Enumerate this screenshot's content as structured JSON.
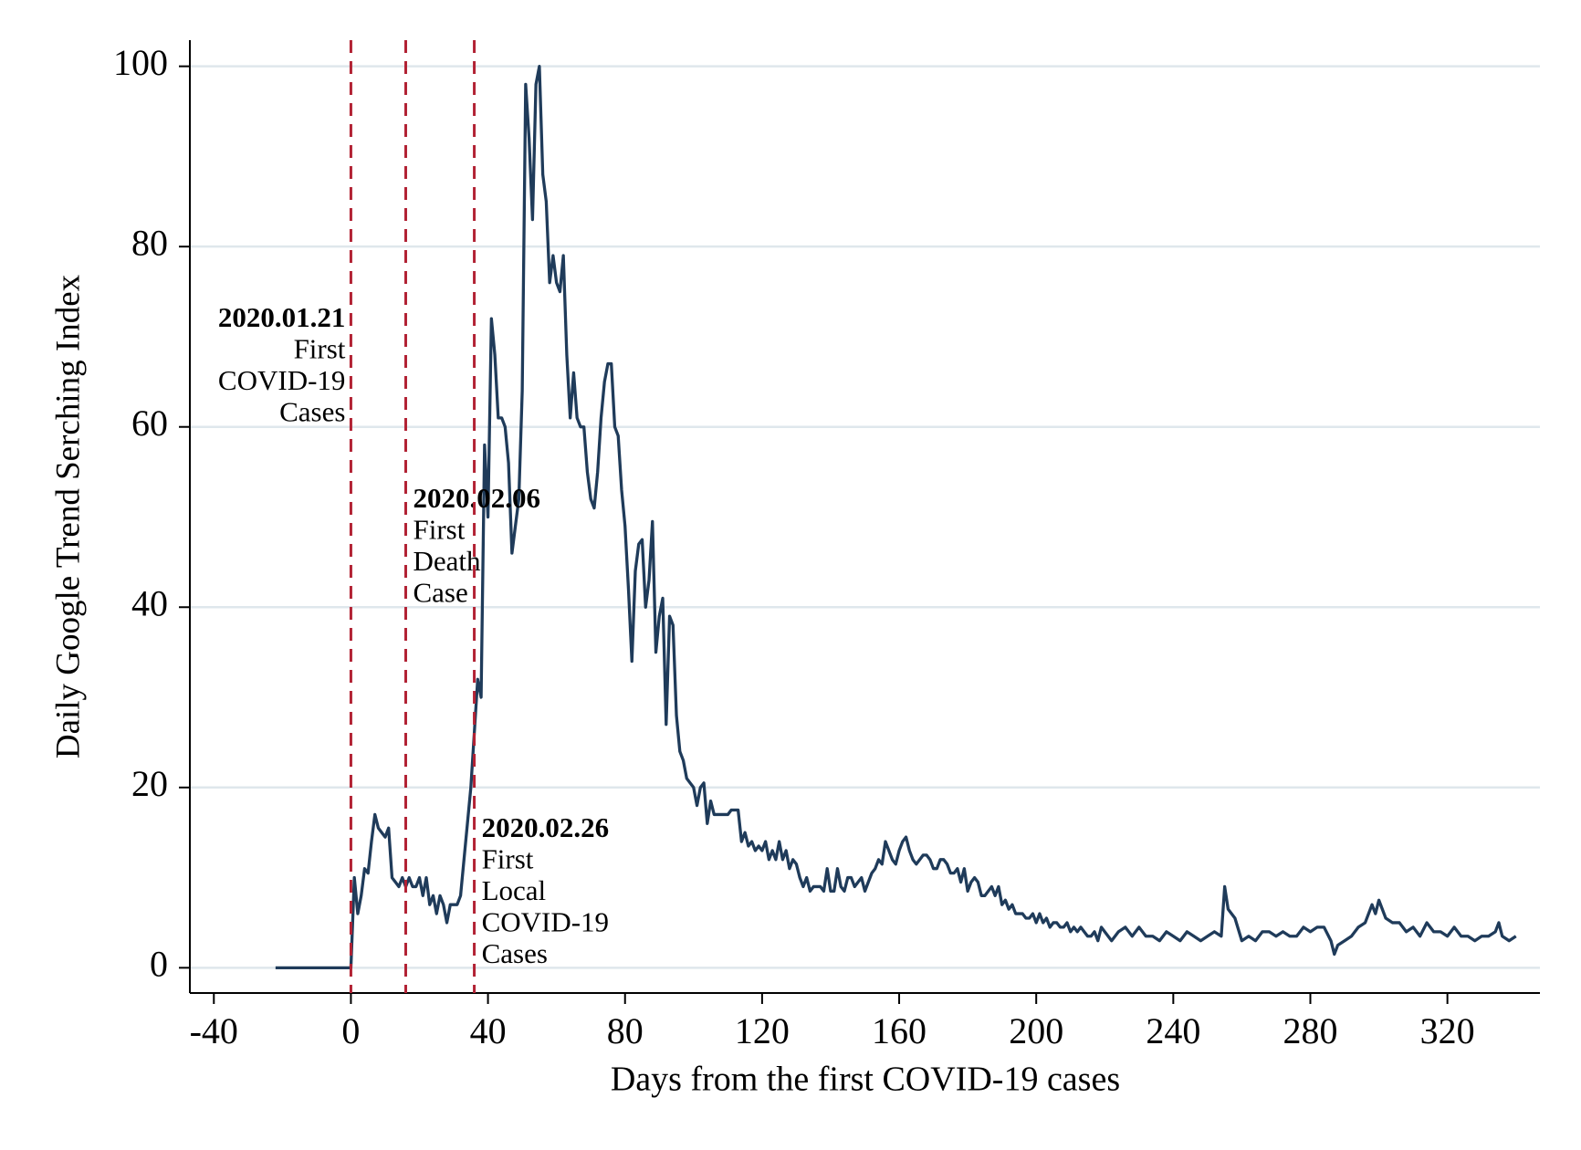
{
  "chart_data": {
    "type": "line",
    "xlabel": "Days from the first COVID-19 cases",
    "ylabel": "Daily Google Trend Serching Index",
    "color": "#1f3b5a",
    "xlim": [
      -47,
      347
    ],
    "ylim": [
      -2.8,
      102.9
    ],
    "xticks": [
      -40,
      0,
      40,
      80,
      120,
      160,
      200,
      240,
      280,
      320
    ],
    "yticks": [
      0,
      20,
      40,
      60,
      80,
      100
    ],
    "grid": true,
    "annotation_color": "#b22234",
    "annotations": [
      {
        "x": 0,
        "date": "2020.01.21",
        "lines": [
          "First",
          "COVID-19",
          "Cases"
        ]
      },
      {
        "x": 16,
        "date": "2020.02.06",
        "lines": [
          "First",
          "Death",
          "Case"
        ]
      },
      {
        "x": 36,
        "date": "2020.02.26",
        "lines": [
          "First",
          "Local",
          "COVID-19",
          "Cases"
        ]
      }
    ],
    "x": [
      -22,
      0,
      1,
      2,
      3,
      4,
      5,
      6,
      7,
      8,
      9,
      10,
      11,
      12,
      13,
      14,
      15,
      16,
      17,
      18,
      19,
      20,
      21,
      22,
      23,
      24,
      25,
      26,
      27,
      28,
      29,
      30,
      31,
      32,
      33,
      34,
      35,
      36,
      37,
      38,
      39,
      40,
      41,
      42,
      43,
      44,
      45,
      46,
      47,
      48,
      49,
      50,
      51,
      52,
      53,
      54,
      55,
      56,
      57,
      58,
      59,
      60,
      61,
      62,
      63,
      64,
      65,
      66,
      67,
      68,
      69,
      70,
      71,
      72,
      73,
      74,
      75,
      76,
      77,
      78,
      79,
      80,
      81,
      82,
      83,
      84,
      85,
      86,
      87,
      88,
      89,
      90,
      91,
      92,
      93,
      94,
      95,
      96,
      97,
      98,
      99,
      100,
      101,
      102,
      103,
      104,
      105,
      106,
      107,
      108,
      109,
      110,
      111,
      112,
      113,
      114,
      115,
      116,
      117,
      118,
      119,
      120,
      121,
      122,
      123,
      124,
      125,
      126,
      127,
      128,
      129,
      130,
      131,
      132,
      133,
      134,
      135,
      136,
      137,
      138,
      139,
      140,
      141,
      142,
      143,
      144,
      145,
      146,
      147,
      148,
      149,
      150,
      151,
      152,
      153,
      154,
      155,
      156,
      157,
      158,
      159,
      160,
      161,
      162,
      163,
      164,
      165,
      166,
      167,
      168,
      169,
      170,
      171,
      172,
      173,
      174,
      175,
      176,
      177,
      178,
      179,
      180,
      181,
      182,
      183,
      184,
      185,
      186,
      187,
      188,
      189,
      190,
      191,
      192,
      193,
      194,
      195,
      196,
      197,
      198,
      199,
      200,
      201,
      202,
      203,
      204,
      205,
      206,
      207,
      208,
      209,
      210,
      211,
      212,
      213,
      214,
      215,
      216,
      217,
      218,
      219,
      220,
      222,
      224,
      226,
      228,
      230,
      232,
      234,
      236,
      238,
      240,
      242,
      244,
      246,
      248,
      250,
      252,
      254,
      255,
      256,
      258,
      260,
      262,
      264,
      266,
      268,
      270,
      272,
      274,
      276,
      278,
      280,
      282,
      284,
      286,
      287,
      288,
      290,
      292,
      294,
      296,
      298,
      299,
      300,
      302,
      304,
      306,
      308,
      310,
      312,
      314,
      316,
      318,
      320,
      322,
      324,
      326,
      328,
      330,
      332,
      334,
      335,
      336,
      338,
      340
    ],
    "values": [
      0,
      0,
      10,
      6,
      8,
      11,
      10.5,
      14,
      17,
      15.5,
      15,
      14.5,
      15.5,
      10,
      9.5,
      9,
      10,
      9,
      10,
      9,
      9,
      10,
      8,
      10,
      7,
      8,
      6,
      8,
      7,
      5,
      7,
      7,
      7,
      8,
      12,
      16,
      20,
      26,
      32,
      30,
      58,
      50,
      72,
      68,
      61,
      61,
      60,
      56,
      46,
      49,
      52,
      64,
      98,
      92,
      83,
      98,
      100,
      88,
      85,
      76,
      79,
      76,
      75,
      79,
      68,
      61,
      66,
      61,
      60,
      60,
      55,
      52,
      51,
      55,
      61,
      65,
      67,
      67,
      60,
      59,
      53,
      49,
      42,
      34,
      44,
      47,
      47.5,
      40,
      43,
      49.5,
      35,
      39,
      41,
      27,
      39,
      38,
      28,
      24,
      23,
      21,
      20.5,
      20,
      18,
      20,
      20.5,
      16,
      18.5,
      17,
      17,
      17,
      17,
      17,
      17.5,
      17.5,
      17.5,
      14,
      15,
      13.5,
      14,
      13,
      13.5,
      13,
      14,
      12,
      13,
      12,
      14,
      12,
      13,
      11,
      12,
      11.5,
      10,
      9,
      10,
      8.5,
      9,
      9,
      9,
      8.5,
      11,
      8.5,
      8.5,
      11,
      9,
      8.5,
      10,
      10,
      9,
      9.5,
      10,
      8.5,
      9.5,
      10.5,
      11,
      12,
      11.5,
      14,
      13,
      12,
      11.5,
      13,
      14,
      14.5,
      13,
      12,
      11.5,
      12,
      12.5,
      12.5,
      12,
      11,
      11,
      12,
      12,
      11.5,
      10.5,
      10.5,
      11,
      9.5,
      11,
      8.5,
      9.5,
      10,
      9.5,
      8,
      8,
      8.5,
      9,
      8,
      9,
      7,
      7.5,
      6.5,
      7,
      6,
      6,
      6,
      5.5,
      5.5,
      6,
      5,
      6,
      5,
      5.5,
      4.5,
      5,
      5,
      4.5,
      4.5,
      5,
      4,
      4.5,
      4,
      4.5,
      4,
      3.5,
      3.5,
      4,
      3,
      4.5,
      4,
      3,
      4,
      4.5,
      3.5,
      4.5,
      3.5,
      3.5,
      3,
      4,
      3.5,
      3,
      4,
      3.5,
      3,
      3.5,
      4,
      3.5,
      9,
      6.5,
      5.5,
      3,
      3.5,
      3,
      4,
      4,
      3.5,
      4,
      3.5,
      3.5,
      4.5,
      4,
      4.5,
      4.5,
      3,
      1.5,
      2.5,
      3,
      3.5,
      4.5,
      5,
      7,
      6,
      7.5,
      5.5,
      5,
      5,
      4,
      4.5,
      3.5,
      5,
      4,
      4,
      3.5,
      4.5,
      3.5,
      3.5,
      3,
      3.5,
      3.5,
      4,
      5,
      3.5,
      3,
      3.5
    ]
  }
}
